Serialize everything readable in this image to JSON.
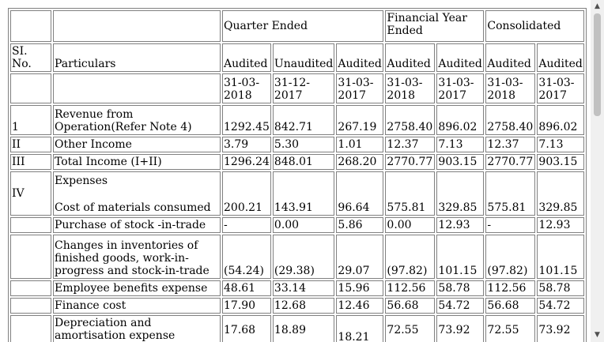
{
  "header": {
    "quarter_ended": "Quarter Ended",
    "financial_year_ended": "Financial Year Ended",
    "consolidated": "Consolidated",
    "sl_no": "SI. No.",
    "particulars": "Particulars",
    "audit_labels": [
      "Audited",
      "Unaudited",
      "Audited",
      "Audited",
      "Audited",
      "Audited",
      "Audited"
    ],
    "dates": [
      "31-03-2018",
      "31-12-2017",
      "31-03-2017",
      "31-03-2018",
      "31-03-2017",
      "31-03-2018",
      "31-03-2017"
    ]
  },
  "rows": [
    {
      "sl": "1",
      "particular": "Revenue from Operation(Refer Note 4)",
      "values": [
        "1292.45",
        "842.71",
        "267.19",
        "2758.40",
        "896.02",
        "2758.40",
        "896.02"
      ]
    },
    {
      "sl": "II",
      "particular": "Other Income",
      "values": [
        "3.79",
        "5.30",
        "1.01",
        "12.37",
        "7.13",
        "12.37",
        "7.13"
      ]
    },
    {
      "sl": "III",
      "particular": "Total Income (I+II)",
      "values": [
        "1296.24",
        "848.01",
        "268.20",
        "2770.77",
        "903.15",
        "2770.77",
        "903.15"
      ]
    },
    {
      "sl": "IV",
      "particular_head": "Expenses",
      "particular": "Cost of materials consumed",
      "values": [
        "200.21",
        "143.91",
        "96.64",
        "575.81",
        "329.85",
        "575.81",
        "329.85"
      ]
    },
    {
      "sl": "",
      "particular": "Purchase of stock -in-trade",
      "values": [
        "-",
        "0.00",
        "5.86",
        "0.00",
        "12.93",
        "-",
        "12.93"
      ]
    },
    {
      "sl": "",
      "particular": "Changes in inventories of finished goods, work-in-progress and stock-in-trade",
      "values": [
        "(54.24)",
        "(29.38)",
        "29.07",
        "(97.82)",
        "101.15",
        "(97.82)",
        "101.15"
      ]
    },
    {
      "sl": "",
      "particular": "Employee benefits expense",
      "values": [
        "48.61",
        "33.14",
        "15.96",
        "112.56",
        "58.78",
        "112.56",
        "58.78"
      ]
    },
    {
      "sl": "",
      "particular": "Finance cost",
      "values": [
        "17.90",
        "12.68",
        "12.46",
        "56.68",
        "54.72",
        "56.68",
        "54.72"
      ]
    },
    {
      "sl": "",
      "particular": "Depreciation and amortisation expense",
      "values": [
        "17.68",
        "18.89",
        "18.21",
        "72.55",
        "73.92",
        "72.55",
        "73.92"
      ]
    }
  ],
  "scrollbar": {
    "up_icon": "triangle-up",
    "down_icon": "triangle-down",
    "up_glyph": "▲",
    "down_glyph": "▼"
  }
}
